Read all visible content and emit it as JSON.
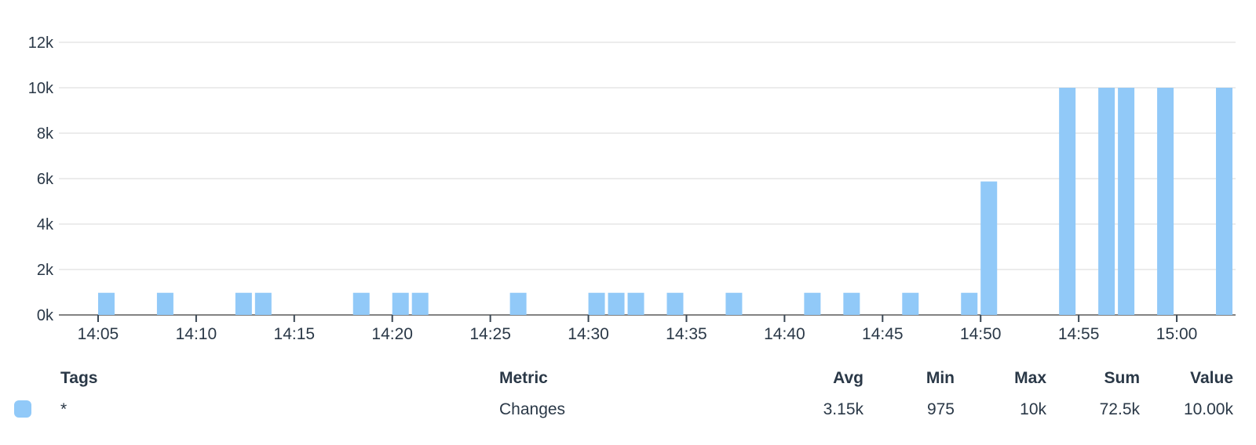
{
  "chart_data": {
    "type": "bar",
    "title": "",
    "xlabel": "",
    "ylabel": "",
    "grid": true,
    "legend_position": "bottom-table",
    "bar_slot_minutes": 1,
    "x_axis": {
      "domain_start": "14:03",
      "domain_end": "15:03",
      "ticks": [
        "14:05",
        "14:10",
        "14:15",
        "14:20",
        "14:25",
        "14:30",
        "14:35",
        "14:40",
        "14:45",
        "14:50",
        "14:55",
        "15:00"
      ]
    },
    "y_axis": {
      "min": 0,
      "max": 12000,
      "ticks": [
        {
          "value": 0,
          "label": "0k"
        },
        {
          "value": 2000,
          "label": "2k"
        },
        {
          "value": 4000,
          "label": "4k"
        },
        {
          "value": 6000,
          "label": "6k"
        },
        {
          "value": 8000,
          "label": "8k"
        },
        {
          "value": 10000,
          "label": "10k"
        },
        {
          "value": 12000,
          "label": "12k"
        }
      ]
    },
    "series": [
      {
        "name": "Changes",
        "color": "#91c9f8",
        "points": [
          {
            "time": "14:05",
            "value": 975
          },
          {
            "time": "14:08",
            "value": 975
          },
          {
            "time": "14:12",
            "value": 975
          },
          {
            "time": "14:13",
            "value": 975
          },
          {
            "time": "14:18",
            "value": 975
          },
          {
            "time": "14:20",
            "value": 975
          },
          {
            "time": "14:21",
            "value": 975
          },
          {
            "time": "14:26",
            "value": 975
          },
          {
            "time": "14:30",
            "value": 975
          },
          {
            "time": "14:31",
            "value": 975
          },
          {
            "time": "14:32",
            "value": 975
          },
          {
            "time": "14:34",
            "value": 975
          },
          {
            "time": "14:37",
            "value": 975
          },
          {
            "time": "14:41",
            "value": 975
          },
          {
            "time": "14:43",
            "value": 975
          },
          {
            "time": "14:46",
            "value": 975
          },
          {
            "time": "14:49",
            "value": 975
          },
          {
            "time": "14:50",
            "value": 5875
          },
          {
            "time": "14:54",
            "value": 10000
          },
          {
            "time": "14:56",
            "value": 10000
          },
          {
            "time": "14:57",
            "value": 10000
          },
          {
            "time": "14:59",
            "value": 10000
          },
          {
            "time": "15:02",
            "value": 10000
          }
        ]
      }
    ]
  },
  "legend": {
    "headers": {
      "tags": "Tags",
      "metric": "Metric",
      "avg": "Avg",
      "min": "Min",
      "max": "Max",
      "sum": "Sum",
      "value": "Value"
    },
    "rows": [
      {
        "swatch_color": "#91c9f8",
        "tags": "*",
        "metric": "Changes",
        "avg": "3.15k",
        "min": "975",
        "max": "10k",
        "sum": "72.5k",
        "value": "10.00k"
      }
    ]
  },
  "colors": {
    "bar": "#91c9f8",
    "text": "#2a3847",
    "grid": "#ececec",
    "axis_line": "#828282",
    "tick_mark": "#3a4754"
  }
}
